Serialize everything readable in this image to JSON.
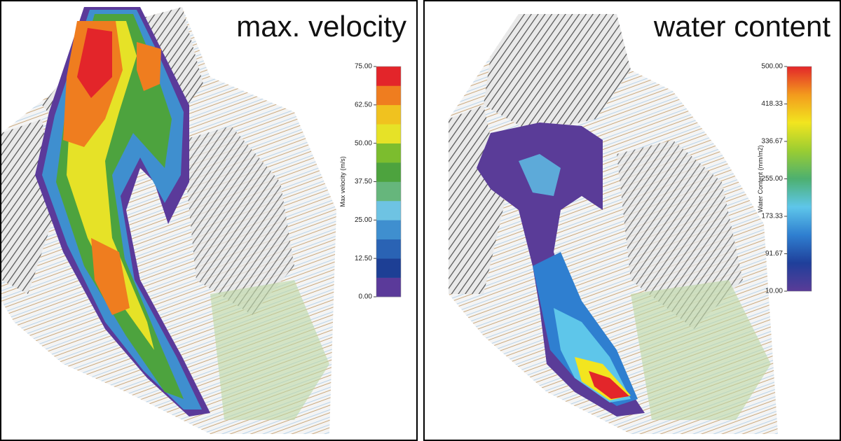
{
  "panels": [
    {
      "title": "max. velocity",
      "colorbar": {
        "label": "Max velocity (m/s)",
        "scale": "discrete",
        "lim": [
          0,
          75
        ],
        "ticks": [
          {
            "value": 0,
            "label": "0.00"
          },
          {
            "value": 12.5,
            "label": "12.50"
          },
          {
            "value": 25,
            "label": "25.00"
          },
          {
            "value": 37.5,
            "label": "37.50"
          },
          {
            "value": 50,
            "label": "50.00"
          },
          {
            "value": 62.5,
            "label": "62.50"
          },
          {
            "value": 75,
            "label": "75.00"
          }
        ],
        "colors": [
          "#5b3a9a",
          "#1d3f95",
          "#2a63b4",
          "#3f8fcf",
          "#6ec3e3",
          "#66b67c",
          "#4da33e",
          "#7cbd2e",
          "#e6e227",
          "#f0c21f",
          "#ef7d1f",
          "#e3252a"
        ]
      }
    },
    {
      "title": "water content",
      "colorbar": {
        "label": "Water Content (mm/m2)",
        "scale": "continuous",
        "lim": [
          10,
          500
        ],
        "ticks": [
          {
            "value": 10,
            "label": "10.00"
          },
          {
            "value": 91.67,
            "label": "91.67"
          },
          {
            "value": 173.33,
            "label": "173.33"
          },
          {
            "value": 255,
            "label": "255.00"
          },
          {
            "value": 336.67,
            "label": "336.67"
          },
          {
            "value": 418.33,
            "label": "418.33"
          },
          {
            "value": 500,
            "label": "500.00"
          }
        ],
        "colors": [
          "#5a3c98",
          "#1f3f9a",
          "#2f7fd0",
          "#5ec6ea",
          "#4db070",
          "#9acd32",
          "#f2e51f",
          "#f39a1d",
          "#e3262a"
        ]
      }
    }
  ]
}
